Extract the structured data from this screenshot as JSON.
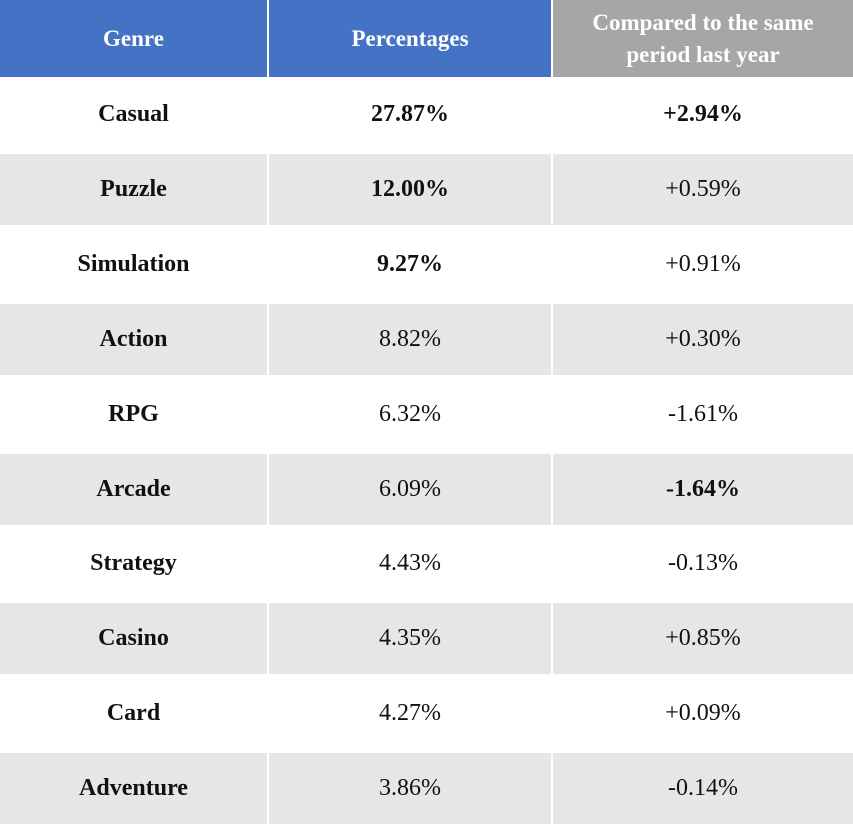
{
  "chart_data": {
    "type": "table",
    "columns": [
      "Genre",
      "Percentages",
      "Compared to the same period last year"
    ],
    "rows": [
      {
        "genre": "Casual",
        "percentage": "27.87%",
        "change": "+2.94%",
        "pct_bold": true,
        "chg_bold": true,
        "positive": true
      },
      {
        "genre": "Puzzle",
        "percentage": "12.00%",
        "change": "+0.59%",
        "pct_bold": true,
        "chg_bold": false,
        "positive": true
      },
      {
        "genre": "Simulation",
        "percentage": "9.27%",
        "change": "+0.91%",
        "pct_bold": true,
        "chg_bold": false,
        "positive": true
      },
      {
        "genre": "Action",
        "percentage": "8.82%",
        "change": "+0.30%",
        "pct_bold": false,
        "chg_bold": false,
        "positive": true
      },
      {
        "genre": "RPG",
        "percentage": "6.32%",
        "change": "-1.61%",
        "pct_bold": false,
        "chg_bold": false,
        "positive": false
      },
      {
        "genre": "Arcade",
        "percentage": "6.09%",
        "change": "-1.64%",
        "pct_bold": false,
        "chg_bold": true,
        "positive": false
      },
      {
        "genre": "Strategy",
        "percentage": "4.43%",
        "change": "-0.13%",
        "pct_bold": false,
        "chg_bold": false,
        "positive": false
      },
      {
        "genre": "Casino",
        "percentage": "4.35%",
        "change": "+0.85%",
        "pct_bold": false,
        "chg_bold": false,
        "positive": true
      },
      {
        "genre": "Card",
        "percentage": "4.27%",
        "change": "+0.09%",
        "pct_bold": false,
        "chg_bold": false,
        "positive": true
      },
      {
        "genre": "Adventure",
        "percentage": "3.86%",
        "change": "-0.14%",
        "pct_bold": false,
        "chg_bold": false,
        "positive": false
      }
    ],
    "colors": {
      "header_primary": "#4472c4",
      "header_secondary": "#a6a6a6",
      "row_shade": "#e6e6e6",
      "positive_text": "#4472c4",
      "negative_text": "#111111"
    }
  }
}
